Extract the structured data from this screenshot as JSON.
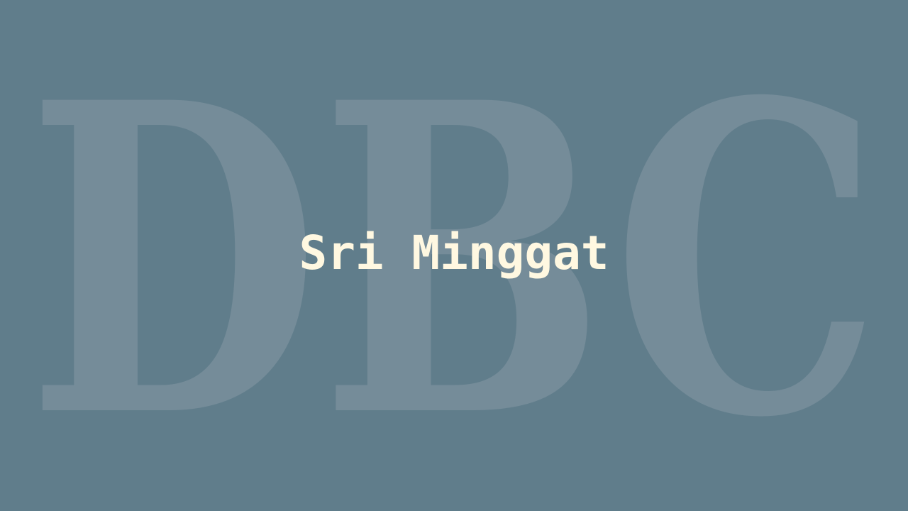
{
  "background": {
    "color": "#607d8b",
    "watermark_text": "DBC",
    "watermark_color": "#758c99"
  },
  "title": {
    "text": "Sri Minggat",
    "color": "#fff8e1"
  }
}
